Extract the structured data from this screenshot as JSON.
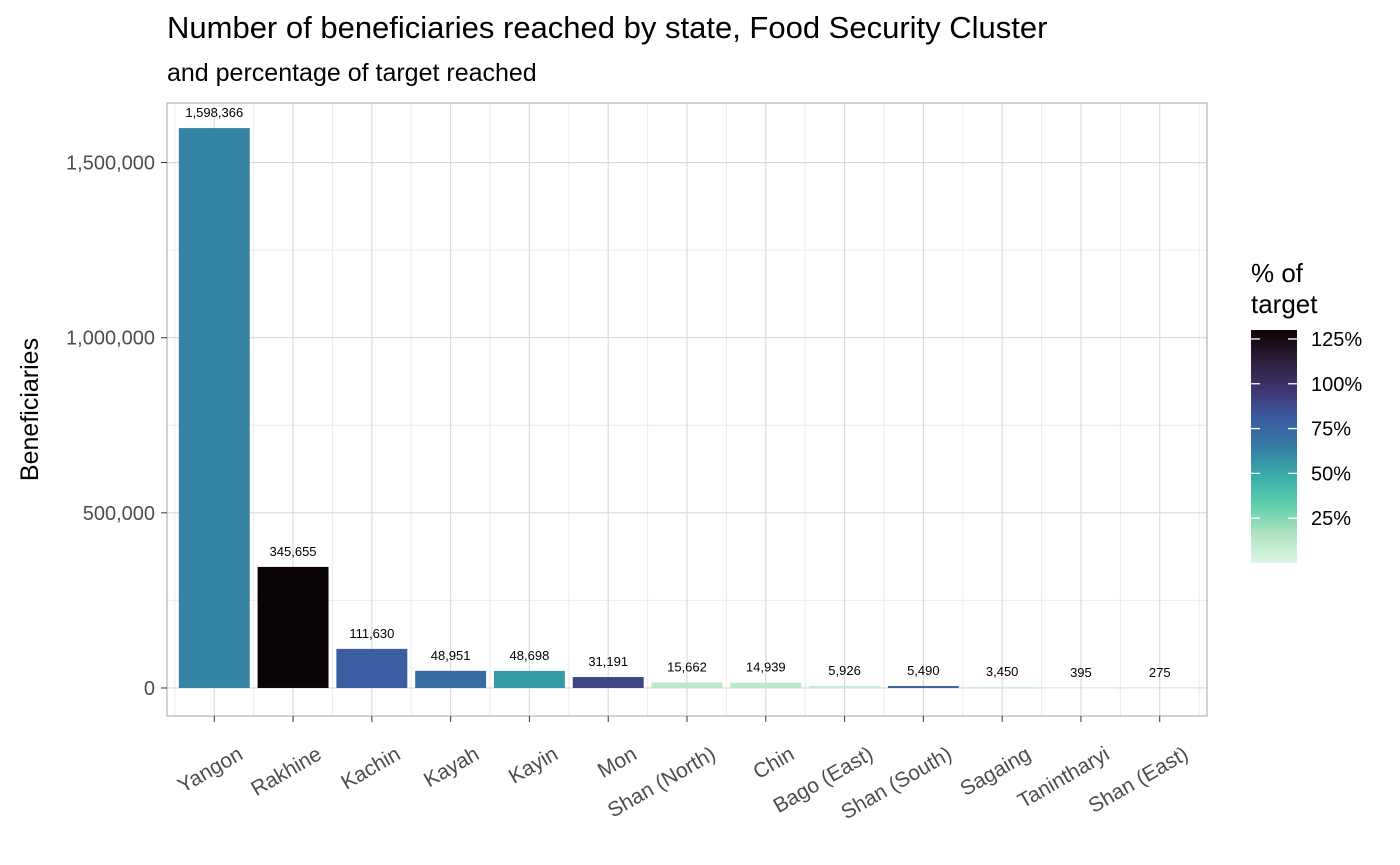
{
  "chart_data": {
    "type": "bar",
    "title": "Number of beneficiaries reached by state, Food Security Cluster",
    "subtitle": "and percentage of target reached",
    "xlabel": "",
    "ylabel": "Beneficiaries",
    "ylim": [
      -80000,
      1670000
    ],
    "yticks": [
      0,
      500000,
      1000000,
      1500000
    ],
    "ytick_labels": [
      "0",
      "500,000",
      "1,000,000",
      "1,500,000"
    ],
    "grid": true,
    "categories": [
      "Yangon",
      "Rakhine",
      "Kachin",
      "Kayah",
      "Kayin",
      "Mon",
      "Shan (North)",
      "Chin",
      "Bago (East)",
      "Shan (South)",
      "Sagaing",
      "Tanintharyi",
      "Shan (East)"
    ],
    "values": [
      1598366,
      345655,
      111630,
      48951,
      48698,
      31191,
      15662,
      14939,
      5926,
      5490,
      3450,
      395,
      275
    ],
    "value_labels": [
      "1,598,366",
      "345,655",
      "111,630",
      "48,951",
      "48,698",
      "31,191",
      "15,662",
      "14,939",
      "5,926",
      "5,490",
      "3,450",
      "395",
      "275"
    ],
    "pct_of_target": [
      62,
      130,
      80,
      72,
      55,
      90,
      12,
      12,
      8,
      80,
      5,
      2,
      2
    ],
    "legend": {
      "title": "% of\ntarget",
      "placement": "right",
      "range": [
        0,
        130
      ],
      "ticks": [
        25,
        50,
        75,
        100,
        125
      ],
      "tick_labels": [
        "25%",
        "50%",
        "75%",
        "100%",
        "125%"
      ],
      "colors": [
        "#def5e5",
        "#aee3c0",
        "#60ceac",
        "#39ada9",
        "#357ba3",
        "#3b5aa2",
        "#40336e",
        "#2b1c35",
        "#0b0405"
      ]
    }
  }
}
